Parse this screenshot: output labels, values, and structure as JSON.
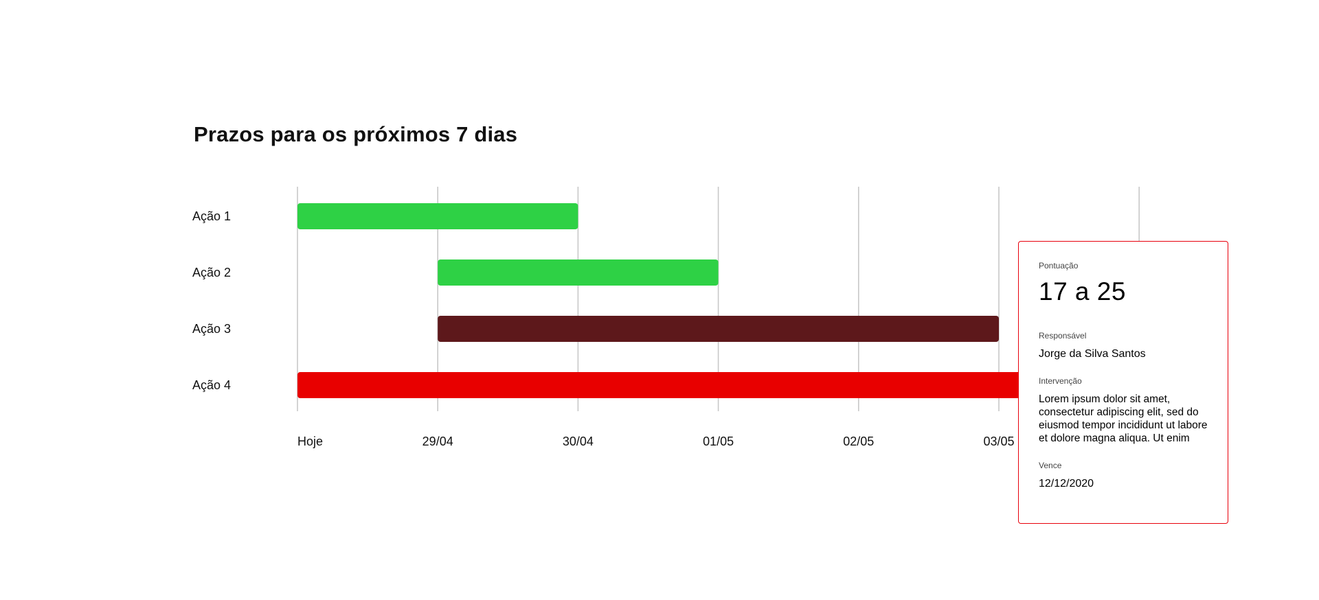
{
  "page": {
    "title": "Prazos para os próximos 7 dias"
  },
  "chart_data": {
    "type": "gantt",
    "title": "Prazos para os próximos 7 dias",
    "x_ticks": [
      "Hoje",
      "29/04",
      "30/04",
      "01/05",
      "02/05",
      "03/05"
    ],
    "categories": [
      "Ação 1",
      "Ação 2",
      "Ação 3",
      "Ação 4"
    ],
    "tasks": [
      {
        "label": "Ação 1",
        "start": 0,
        "end": 2,
        "color": "#2ed145"
      },
      {
        "label": "Ação 2",
        "start": 1,
        "end": 3,
        "color": "#2ed145"
      },
      {
        "label": "Ação 3",
        "start": 1,
        "end": 5,
        "color": "#5d181b"
      },
      {
        "label": "Ação 4",
        "start": 0,
        "end": 6,
        "color": "#e80000"
      }
    ],
    "xlim": [
      0,
      6
    ],
    "grid": true,
    "legend": "none"
  },
  "tooltip": {
    "score_label": "Pontuação",
    "score_value": "17 a 25",
    "responsible_label": "Responsável",
    "responsible_value": "Jorge da Silva Santos",
    "intervention_label": "Intervenção",
    "intervention_text": "Lorem ipsum dolor sit amet, consectetur adipiscing elit, sed do eiusmod tempor incididunt ut labore et dolore magna aliqua. Ut enim",
    "due_label": "Vence",
    "due_value": "12/12/2020",
    "border_color": "#e8000b"
  }
}
